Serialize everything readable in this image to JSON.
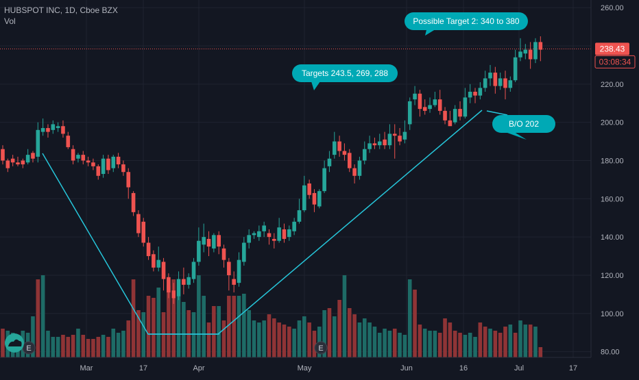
{
  "header": {
    "title": "HUBSPOT INC, 1D, Cboe BZX",
    "volume_label": "Vol"
  },
  "colors": {
    "background": "#131722",
    "up": "#26a69a",
    "down": "#ef5350",
    "up_volume": "#1e6b66",
    "down_volume": "#8f3436",
    "trendline": "#26c6da",
    "callout": "#00a9b5",
    "price_tag": "#ef5350"
  },
  "chart_data": {
    "type": "candlestick",
    "y_ticks": [
      "260.00",
      "240.00",
      "220.00",
      "200.00",
      "180.00",
      "160.00",
      "140.00",
      "120.00",
      "100.00",
      "80.00"
    ],
    "y_range": [
      77,
      264
    ],
    "x_labels": [
      "Mar",
      "17",
      "Apr",
      "May",
      "Jun",
      "16",
      "Jul",
      "17"
    ],
    "last_price": "238.43",
    "countdown": "03:08:34",
    "annotations": [
      "Possible Target 2: 340 to 380",
      "Targets 243.5, 269, 288",
      "B/O  202"
    ],
    "markers": [
      "E",
      "E"
    ],
    "candles": [
      [
        186,
        188,
        180,
        178
      ],
      [
        180,
        181,
        176,
        174
      ],
      [
        181,
        183,
        179,
        177
      ],
      [
        179,
        182,
        178,
        177
      ],
      [
        180,
        181,
        178,
        176
      ],
      [
        179,
        186,
        183,
        178
      ],
      [
        184,
        185,
        181,
        179
      ],
      [
        182,
        200,
        196,
        179
      ],
      [
        195,
        202,
        197,
        193
      ],
      [
        197,
        199,
        195,
        192
      ],
      [
        196,
        201,
        199,
        194
      ],
      [
        197,
        200,
        198,
        195
      ],
      [
        198,
        201,
        194,
        192
      ],
      [
        193,
        195,
        187,
        186
      ],
      [
        186,
        188,
        180,
        178
      ],
      [
        181,
        184,
        183,
        179
      ],
      [
        183,
        185,
        180,
        178
      ],
      [
        180,
        182,
        179,
        177
      ],
      [
        179,
        181,
        177,
        175
      ],
      [
        177,
        178,
        172,
        170
      ],
      [
        173,
        183,
        181,
        171
      ],
      [
        181,
        183,
        175,
        173
      ],
      [
        176,
        183,
        182,
        174
      ],
      [
        182,
        184,
        178,
        176
      ],
      [
        178,
        180,
        174,
        172
      ],
      [
        174,
        176,
        166,
        160
      ],
      [
        163,
        164,
        153,
        151
      ],
      [
        152,
        154,
        142,
        140
      ],
      [
        148,
        150,
        137,
        135
      ],
      [
        137,
        140,
        130,
        128
      ],
      [
        131,
        133,
        124,
        122
      ],
      [
        124,
        135,
        128,
        122
      ],
      [
        127,
        129,
        118,
        112
      ],
      [
        119,
        121,
        111,
        108
      ],
      [
        112,
        116,
        108,
        105
      ],
      [
        109,
        122,
        118,
        107
      ],
      [
        118,
        124,
        115,
        110
      ],
      [
        115,
        121,
        119,
        113
      ],
      [
        118,
        129,
        127,
        116
      ],
      [
        127,
        145,
        138,
        125
      ],
      [
        136,
        147,
        140,
        132
      ],
      [
        139,
        143,
        135,
        130
      ],
      [
        134,
        142,
        141,
        132
      ],
      [
        141,
        143,
        135,
        131
      ],
      [
        134,
        136,
        128,
        124
      ],
      [
        127,
        129,
        120,
        112
      ],
      [
        118,
        122,
        115,
        111
      ],
      [
        116,
        132,
        128,
        114
      ],
      [
        127,
        140,
        137,
        125
      ],
      [
        137,
        144,
        141,
        134
      ],
      [
        141,
        143,
        142,
        139
      ],
      [
        140,
        146,
        143,
        138
      ],
      [
        143,
        148,
        146,
        140
      ],
      [
        142,
        144,
        140,
        136
      ],
      [
        139,
        142,
        138,
        134
      ],
      [
        138,
        150,
        145,
        137
      ],
      [
        144,
        147,
        139,
        137
      ],
      [
        140,
        146,
        144,
        138
      ],
      [
        143,
        150,
        148,
        141
      ],
      [
        148,
        160,
        154,
        147
      ],
      [
        154,
        172,
        167,
        153
      ],
      [
        168,
        170,
        162,
        160
      ],
      [
        163,
        165,
        157,
        153
      ],
      [
        156,
        165,
        164,
        155
      ],
      [
        164,
        180,
        176,
        163
      ],
      [
        177,
        185,
        181,
        174
      ],
      [
        183,
        195,
        190,
        181
      ],
      [
        190,
        193,
        185,
        182
      ],
      [
        185,
        189,
        183,
        180
      ],
      [
        184,
        186,
        176,
        174
      ],
      [
        176,
        178,
        172,
        168
      ],
      [
        172,
        182,
        180,
        170
      ],
      [
        180,
        190,
        186,
        178
      ],
      [
        186,
        193,
        189,
        184
      ],
      [
        189,
        192,
        188,
        186
      ],
      [
        188,
        194,
        190,
        186
      ],
      [
        191,
        195,
        188,
        186
      ],
      [
        188,
        199,
        194,
        186
      ],
      [
        194,
        199,
        193,
        181
      ],
      [
        193,
        197,
        190,
        188
      ],
      [
        191,
        201,
        195,
        189
      ],
      [
        199,
        213,
        211,
        196
      ],
      [
        212,
        219,
        215,
        209
      ],
      [
        215,
        217,
        207,
        203
      ],
      [
        208,
        212,
        206,
        204
      ],
      [
        207,
        213,
        209,
        205
      ],
      [
        209,
        216,
        212,
        208
      ],
      [
        212,
        217,
        206,
        204
      ],
      [
        206,
        208,
        201,
        199
      ],
      [
        201,
        206,
        198,
        199
      ],
      [
        200,
        209,
        207,
        199
      ],
      [
        207,
        211,
        203,
        201
      ],
      [
        203,
        218,
        213,
        202
      ],
      [
        213,
        220,
        216,
        210
      ],
      [
        216,
        218,
        214,
        210
      ],
      [
        214,
        221,
        218,
        212
      ],
      [
        218,
        227,
        223,
        216
      ],
      [
        223,
        230,
        226,
        219
      ],
      [
        226,
        229,
        219,
        215
      ],
      [
        219,
        226,
        223,
        217
      ],
      [
        223,
        227,
        218,
        212
      ],
      [
        218,
        224,
        222,
        216
      ],
      [
        222,
        238,
        234,
        221
      ],
      [
        234,
        244,
        237,
        232
      ],
      [
        236,
        241,
        238,
        233
      ],
      [
        238,
        242,
        233,
        228
      ],
      [
        233,
        244,
        242,
        231
      ],
      [
        242,
        245,
        238,
        232
      ]
    ],
    "volumes": [
      [
        14,
        "down"
      ],
      [
        13,
        "up"
      ],
      [
        12,
        "up"
      ],
      [
        11,
        "up"
      ],
      [
        13,
        "up"
      ],
      [
        12,
        "up"
      ],
      [
        20,
        "up"
      ],
      [
        38,
        "down"
      ],
      [
        40,
        "up"
      ],
      [
        13,
        "up"
      ],
      [
        10,
        "up"
      ],
      [
        10,
        "up"
      ],
      [
        11,
        "down"
      ],
      [
        10,
        "down"
      ],
      [
        11,
        "down"
      ],
      [
        14,
        "up"
      ],
      [
        11,
        "down"
      ],
      [
        9,
        "down"
      ],
      [
        9,
        "down"
      ],
      [
        10,
        "down"
      ],
      [
        11,
        "up"
      ],
      [
        10,
        "down"
      ],
      [
        14,
        "up"
      ],
      [
        12,
        "up"
      ],
      [
        13,
        "up"
      ],
      [
        18,
        "down"
      ],
      [
        38,
        "down"
      ],
      [
        23,
        "down"
      ],
      [
        22,
        "up"
      ],
      [
        30,
        "down"
      ],
      [
        29,
        "down"
      ],
      [
        34,
        "up"
      ],
      [
        22,
        "down"
      ],
      [
        35,
        "down"
      ],
      [
        38,
        "down"
      ],
      [
        30,
        "up"
      ],
      [
        27,
        "up"
      ],
      [
        23,
        "down"
      ],
      [
        22,
        "up"
      ],
      [
        40,
        "up"
      ],
      [
        30,
        "up"
      ],
      [
        17,
        "down"
      ],
      [
        25,
        "down"
      ],
      [
        25,
        "up"
      ],
      [
        18,
        "down"
      ],
      [
        30,
        "down"
      ],
      [
        30,
        "down"
      ],
      [
        30,
        "up"
      ],
      [
        31,
        "up"
      ],
      [
        23,
        "up"
      ],
      [
        18,
        "up"
      ],
      [
        17,
        "up"
      ],
      [
        18,
        "up"
      ],
      [
        21,
        "down"
      ],
      [
        19,
        "down"
      ],
      [
        17,
        "down"
      ],
      [
        16,
        "down"
      ],
      [
        15,
        "down"
      ],
      [
        14,
        "up"
      ],
      [
        18,
        "up"
      ],
      [
        20,
        "up"
      ],
      [
        17,
        "down"
      ],
      [
        13,
        "down"
      ],
      [
        15,
        "up"
      ],
      [
        23,
        "up"
      ],
      [
        24,
        "down"
      ],
      [
        20,
        "up"
      ],
      [
        28,
        "down"
      ],
      [
        40,
        "up"
      ],
      [
        24,
        "down"
      ],
      [
        21,
        "down"
      ],
      [
        17,
        "up"
      ],
      [
        19,
        "up"
      ],
      [
        17,
        "up"
      ],
      [
        15,
        "up"
      ],
      [
        12,
        "up"
      ],
      [
        14,
        "up"
      ],
      [
        13,
        "up"
      ],
      [
        14,
        "down"
      ],
      [
        12,
        "up"
      ],
      [
        11,
        "up"
      ],
      [
        38,
        "up"
      ],
      [
        33,
        "down"
      ],
      [
        16,
        "down"
      ],
      [
        14,
        "up"
      ],
      [
        13,
        "up"
      ],
      [
        13,
        "up"
      ],
      [
        12,
        "down"
      ],
      [
        19,
        "down"
      ],
      [
        17,
        "down"
      ],
      [
        13,
        "down"
      ],
      [
        12,
        "down"
      ],
      [
        11,
        "up"
      ],
      [
        12,
        "up"
      ],
      [
        10,
        "up"
      ],
      [
        17,
        "down"
      ],
      [
        15,
        "down"
      ],
      [
        14,
        "up"
      ],
      [
        13,
        "down"
      ],
      [
        12,
        "down"
      ],
      [
        15,
        "down"
      ],
      [
        16,
        "up"
      ],
      [
        12,
        "down"
      ],
      [
        18,
        "up"
      ],
      [
        16,
        "up"
      ],
      [
        16,
        "down"
      ],
      [
        15,
        "up"
      ],
      [
        5,
        "down"
      ]
    ]
  }
}
